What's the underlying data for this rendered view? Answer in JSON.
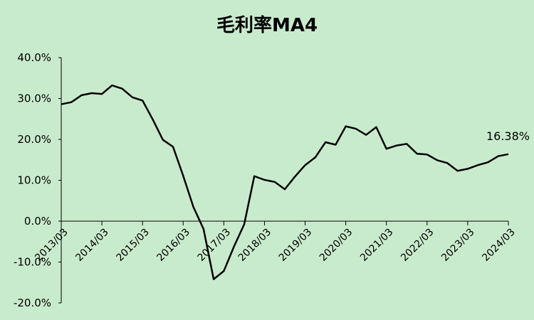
{
  "chart_data": {
    "type": "line",
    "title": "毛利率MA4",
    "xlabel": "",
    "ylabel": "",
    "ylim": [
      -20,
      40
    ],
    "yticks": [
      {
        "value": 40,
        "label": "40.0%"
      },
      {
        "value": 30,
        "label": "30.0%"
      },
      {
        "value": 20,
        "label": "20.0%"
      },
      {
        "value": 10,
        "label": "10.0%"
      },
      {
        "value": 0,
        "label": "0.0%"
      },
      {
        "value": -10,
        "label": "-10.0%"
      },
      {
        "value": -20,
        "label": "-20.0%"
      }
    ],
    "xtick_labels": [
      "2013/03",
      "2014/03",
      "2015/03",
      "2016/03",
      "2017/03",
      "2018/03",
      "2019/03",
      "2020/03",
      "2021/03",
      "2022/03",
      "2023/03",
      "2024/03"
    ],
    "grid": false,
    "legend": "none",
    "series": [
      {
        "color": "#000000",
        "x": [
          "2013/03",
          "2013/06",
          "2013/09",
          "2013/12",
          "2014/03",
          "2014/06",
          "2014/09",
          "2014/12",
          "2015/03",
          "2015/06",
          "2015/09",
          "2015/12",
          "2016/03",
          "2016/06",
          "2016/09",
          "2016/12",
          "2017/03",
          "2017/06",
          "2017/09",
          "2017/12",
          "2018/03",
          "2018/06",
          "2018/09",
          "2018/12",
          "2019/03",
          "2019/06",
          "2019/09",
          "2019/12",
          "2020/03",
          "2020/06",
          "2020/09",
          "2020/12",
          "2021/03",
          "2021/06",
          "2021/09",
          "2021/12",
          "2022/03",
          "2022/06",
          "2022/09",
          "2022/12",
          "2023/03",
          "2023/06",
          "2023/09",
          "2023/12",
          "2024/03"
        ],
        "values": [
          28.6,
          29.1,
          30.8,
          31.3,
          31.1,
          33.2,
          32.4,
          30.3,
          29.5,
          24.9,
          19.9,
          18.2,
          11.1,
          3.5,
          -1.9,
          -14.2,
          -12.2,
          -6.2,
          -0.8,
          11.0,
          10.1,
          9.6,
          7.8,
          10.9,
          13.7,
          15.6,
          19.3,
          18.7,
          23.2,
          22.6,
          21.1,
          23.0,
          17.7,
          18.5,
          18.9,
          16.5,
          16.3,
          14.9,
          14.2,
          12.3,
          12.8,
          13.7,
          14.4,
          15.9,
          16.38
        ]
      }
    ],
    "annotations": [
      {
        "text": "16.38%",
        "x": "2024/03",
        "y": 16.38
      }
    ]
  }
}
